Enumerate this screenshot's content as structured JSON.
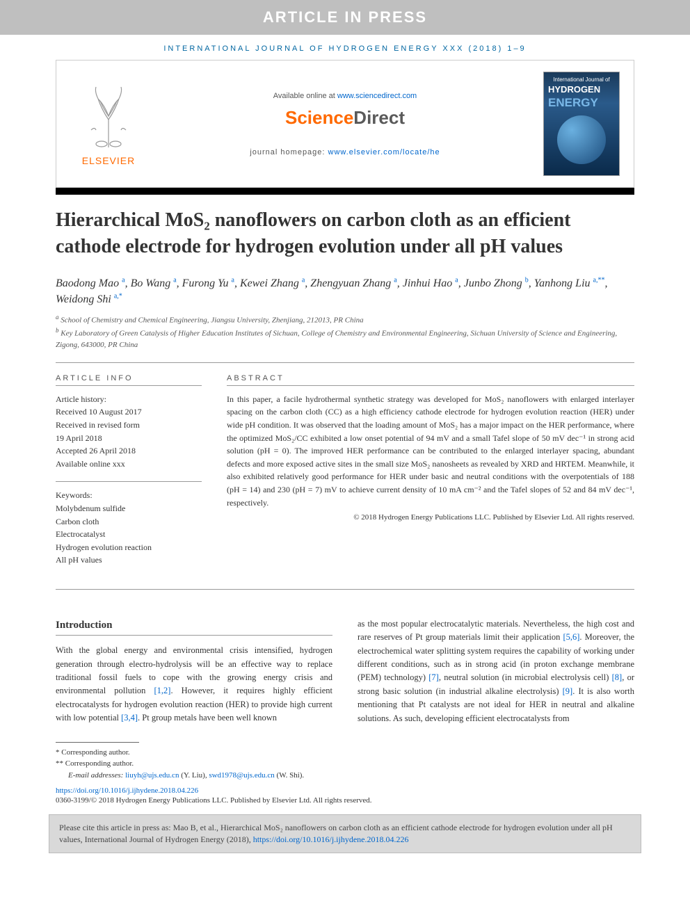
{
  "banner": "ARTICLE IN PRESS",
  "journal_header": "INTERNATIONAL JOURNAL OF HYDROGEN ENERGY XXX (2018) 1–9",
  "header": {
    "available_prefix": "Available online at ",
    "available_link": "www.sciencedirect.com",
    "sd_science": "Science",
    "sd_direct": "Direct",
    "homepage_prefix": "journal homepage: ",
    "homepage_link": "www.elsevier.com/locate/he",
    "elsevier": "ELSEVIER",
    "cover_top": "International Journal of",
    "cover_hydrogen": "HYDROGEN",
    "cover_energy": "ENERGY"
  },
  "title": "Hierarchical MoS₂ nanoflowers on carbon cloth as an efficient cathode electrode for hydrogen evolution under all pH values",
  "authors_html": "Baodong Mao <sup>a</sup>, Bo Wang <sup>a</sup>, Furong Yu <sup>a</sup>, Kewei Zhang <sup>a</sup>, Zhengyuan Zhang <sup>a</sup>, Jinhui Hao <sup>a</sup>, Junbo Zhong <sup>b</sup>, Yanhong Liu <sup>a,**</sup>, Weidong Shi <sup>a,*</sup>",
  "affiliations": {
    "a": "School of Chemistry and Chemical Engineering, Jiangsu University, Zhenjiang, 212013, PR China",
    "b": "Key Laboratory of Green Catalysis of Higher Education Institutes of Sichuan, College of Chemistry and Environmental Engineering, Sichuan University of Science and Engineering, Zigong, 643000, PR China"
  },
  "article_info": {
    "heading": "ARTICLE INFO",
    "history_label": "Article history:",
    "received": "Received 10 August 2017",
    "revised1": "Received in revised form",
    "revised2": "19 April 2018",
    "accepted": "Accepted 26 April 2018",
    "available": "Available online xxx",
    "keywords_label": "Keywords:",
    "keywords": [
      "Molybdenum sulfide",
      "Carbon cloth",
      "Electrocatalyst",
      "Hydrogen evolution reaction",
      "All pH values"
    ]
  },
  "abstract": {
    "heading": "ABSTRACT",
    "text": "In this paper, a facile hydrothermal synthetic strategy was developed for MoS₂ nanoflowers with enlarged interlayer spacing on the carbon cloth (CC) as a high efficiency cathode electrode for hydrogen evolution reaction (HER) under wide pH condition. It was observed that the loading amount of MoS₂ has a major impact on the HER performance, where the optimized MoS₂/CC exhibited a low onset potential of 94 mV and a small Tafel slope of 50 mV dec⁻¹ in strong acid solution (pH = 0). The improved HER performance can be contributed to the enlarged interlayer spacing, abundant defects and more exposed active sites in the small size MoS₂ nanosheets as revealed by XRD and HRTEM. Meanwhile, it also exhibited relatively good performance for HER under basic and neutral conditions with the overpotentials of 188 (pH = 14) and 230 (pH = 7) mV to achieve current density of 10 mA cm⁻² and the Tafel slopes of 52 and 84 mV dec⁻¹, respectively.",
    "copyright": "© 2018 Hydrogen Energy Publications LLC. Published by Elsevier Ltd. All rights reserved."
  },
  "intro": {
    "heading": "Introduction",
    "col1": "With the global energy and environmental crisis intensified, hydrogen generation through electro-hydrolysis will be an effective way to replace traditional fossil fuels to cope with the growing energy crisis and environmental pollution [1,2]. However, it requires highly efficient electrocatalysts for hydrogen evolution reaction (HER) to provide high current with low potential [3,4]. Pt group metals have been well known",
    "col2": "as the most popular electrocatalytic materials. Nevertheless, the high cost and rare reserves of Pt group materials limit their application [5,6]. Moreover, the electrochemical water splitting system requires the capability of working under different conditions, such as in strong acid (in proton exchange membrane (PEM) technology) [7], neutral solution (in microbial electrolysis cell) [8], or strong basic solution (in industrial alkaline electrolysis) [9]. It is also worth mentioning that Pt catalysts are not ideal for HER in neutral and alkaline solutions. As such, developing efficient electrocatalysts from",
    "refs": {
      "r12": "[1,2]",
      "r34": "[3,4]",
      "r56": "[5,6]",
      "r7": "[7]",
      "r8": "[8]",
      "r9": "[9]"
    }
  },
  "footnotes": {
    "corr1": "* Corresponding author.",
    "corr2": "** Corresponding author.",
    "email_label": "E-mail addresses: ",
    "email1": "liuyh@ujs.edu.cn",
    "email1_name": " (Y. Liu), ",
    "email2": "swd1978@ujs.edu.cn",
    "email2_name": " (W. Shi).",
    "doi": "https://doi.org/10.1016/j.ijhydene.2018.04.226",
    "issn_copyright": "0360-3199/© 2018 Hydrogen Energy Publications LLC. Published by Elsevier Ltd. All rights reserved."
  },
  "cite_box": {
    "text": "Please cite this article in press as: Mao B, et al., Hierarchical MoS₂ nanoflowers on carbon cloth as an efficient cathode electrode for hydrogen evolution under all pH values, International Journal of Hydrogen Energy (2018), ",
    "link": "https://doi.org/10.1016/j.ijhydene.2018.04.226"
  },
  "colors": {
    "banner_bg": "#bfbfbf",
    "link": "#0066cc",
    "elsevier_orange": "#ff6900",
    "journal_blue": "#0066a1"
  }
}
